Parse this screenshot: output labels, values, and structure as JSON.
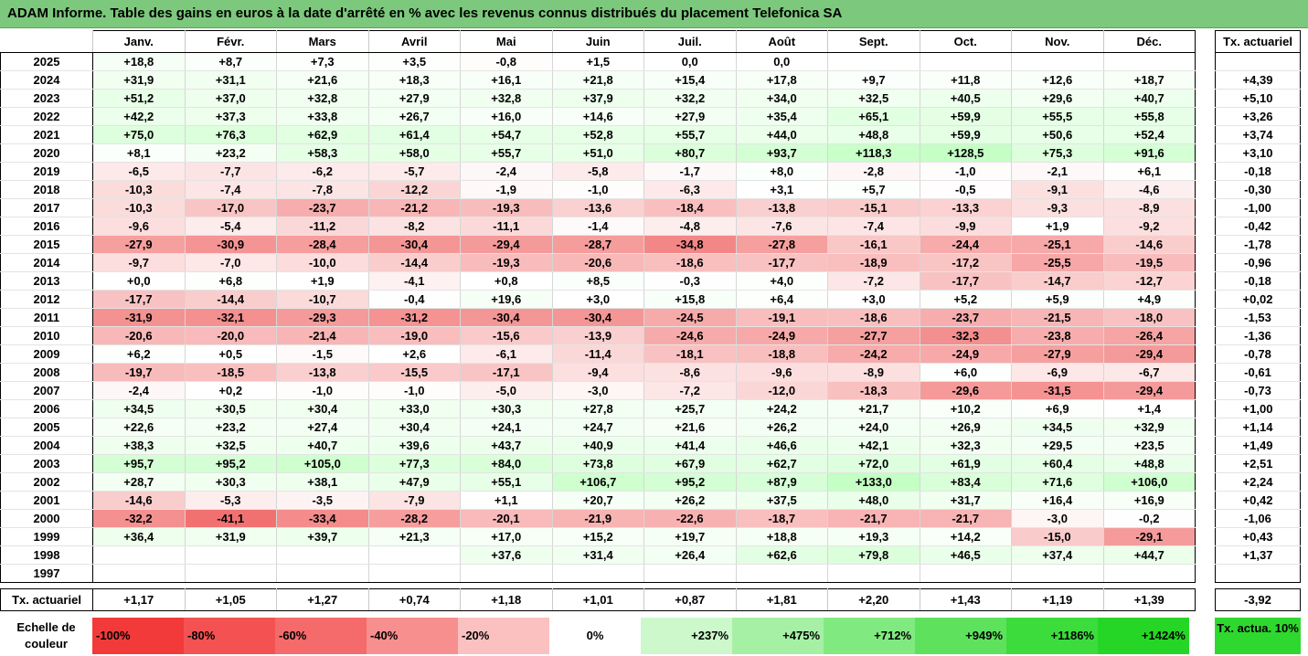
{
  "title": "ADAM Informe. Table des gains en euros à la date d'arrêté en % avec les revenus connus distribués du placement Telefonica SA",
  "months": [
    "Janv.",
    "Févr.",
    "Mars",
    "Avril",
    "Mai",
    "Juin",
    "Juil.",
    "Août",
    "Sept.",
    "Oct.",
    "Nov.",
    "Déc."
  ],
  "side_header": "Tx. actuariel",
  "rows": [
    {
      "year": "2025",
      "values": [
        "+18,8",
        "+8,7",
        "+7,3",
        "+3,5",
        "-0,8",
        "+1,5",
        "0,0",
        "0,0",
        "",
        "",
        "",
        ""
      ],
      "tx": ""
    },
    {
      "year": "2024",
      "values": [
        "+31,9",
        "+31,1",
        "+21,6",
        "+18,3",
        "+16,1",
        "+21,8",
        "+15,4",
        "+17,8",
        "+9,7",
        "+11,8",
        "+12,6",
        "+18,7"
      ],
      "tx": "+4,39"
    },
    {
      "year": "2023",
      "values": [
        "+51,2",
        "+37,0",
        "+32,8",
        "+27,9",
        "+32,8",
        "+37,9",
        "+32,2",
        "+34,0",
        "+32,5",
        "+40,5",
        "+29,6",
        "+40,7"
      ],
      "tx": "+5,10"
    },
    {
      "year": "2022",
      "values": [
        "+42,2",
        "+37,3",
        "+33,8",
        "+26,7",
        "+16,0",
        "+14,6",
        "+27,9",
        "+35,4",
        "+65,1",
        "+59,9",
        "+55,5",
        "+55,8"
      ],
      "tx": "+3,26"
    },
    {
      "year": "2021",
      "values": [
        "+75,0",
        "+76,3",
        "+62,9",
        "+61,4",
        "+54,7",
        "+52,8",
        "+55,7",
        "+44,0",
        "+48,8",
        "+59,9",
        "+50,6",
        "+52,4"
      ],
      "tx": "+3,74"
    },
    {
      "year": "2020",
      "values": [
        "+8,1",
        "+23,2",
        "+58,3",
        "+58,0",
        "+55,7",
        "+51,0",
        "+80,7",
        "+93,7",
        "+118,3",
        "+128,5",
        "+75,3",
        "+91,6"
      ],
      "tx": "+3,10"
    },
    {
      "year": "2019",
      "values": [
        "-6,5",
        "-7,7",
        "-6,2",
        "-5,7",
        "-2,4",
        "-5,8",
        "-1,7",
        "+8,0",
        "-2,8",
        "-1,0",
        "-2,1",
        "+6,1"
      ],
      "tx": "-0,18"
    },
    {
      "year": "2018",
      "values": [
        "-10,3",
        "-7,4",
        "-7,8",
        "-12,2",
        "-1,9",
        "-1,0",
        "-6,3",
        "+3,1",
        "+5,7",
        "-0,5",
        "-9,1",
        "-4,6"
      ],
      "tx": "-0,30"
    },
    {
      "year": "2017",
      "values": [
        "-10,3",
        "-17,0",
        "-23,7",
        "-21,2",
        "-19,3",
        "-13,6",
        "-18,4",
        "-13,8",
        "-15,1",
        "-13,3",
        "-9,3",
        "-8,9"
      ],
      "tx": "-1,00"
    },
    {
      "year": "2016",
      "values": [
        "-9,6",
        "-5,4",
        "-11,2",
        "-8,2",
        "-11,1",
        "-1,4",
        "-4,8",
        "-7,6",
        "-7,4",
        "-9,9",
        "+1,9",
        "-9,2"
      ],
      "tx": "-0,42"
    },
    {
      "year": "2015",
      "values": [
        "-27,9",
        "-30,9",
        "-28,4",
        "-30,4",
        "-29,4",
        "-28,7",
        "-34,8",
        "-27,8",
        "-16,1",
        "-24,4",
        "-25,1",
        "-14,6"
      ],
      "tx": "-1,78"
    },
    {
      "year": "2014",
      "values": [
        "-9,7",
        "-7,0",
        "-10,0",
        "-14,4",
        "-19,3",
        "-20,6",
        "-18,6",
        "-17,7",
        "-18,9",
        "-17,2",
        "-25,5",
        "-19,5"
      ],
      "tx": "-0,96"
    },
    {
      "year": "2013",
      "values": [
        "+0,0",
        "+6,8",
        "+1,9",
        "-4,1",
        "+0,8",
        "+8,5",
        "-0,3",
        "+4,0",
        "-7,2",
        "-17,7",
        "-14,7",
        "-12,7"
      ],
      "tx": "-0,18"
    },
    {
      "year": "2012",
      "values": [
        "-17,7",
        "-14,4",
        "-10,7",
        "-0,4",
        "+19,6",
        "+3,0",
        "+15,8",
        "+6,4",
        "+3,0",
        "+5,2",
        "+5,9",
        "+4,9"
      ],
      "tx": "+0,02"
    },
    {
      "year": "2011",
      "values": [
        "-31,9",
        "-32,1",
        "-29,3",
        "-31,2",
        "-30,4",
        "-30,4",
        "-24,5",
        "-19,1",
        "-18,6",
        "-23,7",
        "-21,5",
        "-18,0"
      ],
      "tx": "-1,53"
    },
    {
      "year": "2010",
      "values": [
        "-20,6",
        "-20,0",
        "-21,4",
        "-19,0",
        "-15,6",
        "-13,9",
        "-24,6",
        "-24,9",
        "-27,7",
        "-32,3",
        "-23,8",
        "-26,4"
      ],
      "tx": "-1,36"
    },
    {
      "year": "2009",
      "values": [
        "+6,2",
        "+0,5",
        "-1,5",
        "+2,6",
        "-6,1",
        "-11,4",
        "-18,1",
        "-18,8",
        "-24,2",
        "-24,9",
        "-27,9",
        "-29,4"
      ],
      "tx": "-0,78"
    },
    {
      "year": "2008",
      "values": [
        "-19,7",
        "-18,5",
        "-13,8",
        "-15,5",
        "-17,1",
        "-9,4",
        "-8,6",
        "-9,6",
        "-8,9",
        "+6,0",
        "-6,9",
        "-6,7"
      ],
      "tx": "-0,61"
    },
    {
      "year": "2007",
      "values": [
        "-2,4",
        "+0,2",
        "-1,0",
        "-1,0",
        "-5,0",
        "-3,0",
        "-7,2",
        "-12,0",
        "-18,3",
        "-29,6",
        "-31,5",
        "-29,4"
      ],
      "tx": "-0,73"
    },
    {
      "year": "2006",
      "values": [
        "+34,5",
        "+30,5",
        "+30,4",
        "+33,0",
        "+30,3",
        "+27,8",
        "+25,7",
        "+24,2",
        "+21,7",
        "+10,2",
        "+6,9",
        "+1,4"
      ],
      "tx": "+1,00"
    },
    {
      "year": "2005",
      "values": [
        "+22,6",
        "+23,2",
        "+27,4",
        "+30,4",
        "+24,1",
        "+24,7",
        "+21,6",
        "+26,2",
        "+24,0",
        "+26,9",
        "+34,5",
        "+32,9"
      ],
      "tx": "+1,14"
    },
    {
      "year": "2004",
      "values": [
        "+38,3",
        "+32,5",
        "+40,7",
        "+39,6",
        "+43,7",
        "+40,9",
        "+41,4",
        "+46,6",
        "+42,1",
        "+32,3",
        "+29,5",
        "+23,5"
      ],
      "tx": "+1,49"
    },
    {
      "year": "2003",
      "values": [
        "+95,7",
        "+95,2",
        "+105,0",
        "+77,3",
        "+84,0",
        "+73,8",
        "+67,9",
        "+62,7",
        "+72,0",
        "+61,9",
        "+60,4",
        "+48,8"
      ],
      "tx": "+2,51"
    },
    {
      "year": "2002",
      "values": [
        "+28,7",
        "+30,3",
        "+38,1",
        "+47,9",
        "+55,1",
        "+106,7",
        "+95,2",
        "+87,9",
        "+133,0",
        "+83,4",
        "+71,6",
        "+106,0"
      ],
      "tx": "+2,24"
    },
    {
      "year": "2001",
      "values": [
        "-14,6",
        "-5,3",
        "-3,5",
        "-7,9",
        "+1,1",
        "+20,7",
        "+26,2",
        "+37,5",
        "+48,0",
        "+31,7",
        "+16,4",
        "+16,9"
      ],
      "tx": "+0,42"
    },
    {
      "year": "2000",
      "values": [
        "-32,2",
        "-41,1",
        "-33,4",
        "-28,2",
        "-20,1",
        "-21,9",
        "-22,6",
        "-18,7",
        "-21,7",
        "-21,7",
        "-3,0",
        "-0,2"
      ],
      "tx": "-1,06"
    },
    {
      "year": "1999",
      "values": [
        "+36,4",
        "+31,9",
        "+39,7",
        "+21,3",
        "+17,0",
        "+15,2",
        "+19,7",
        "+18,8",
        "+19,3",
        "+14,2",
        "-15,0",
        "-29,1"
      ],
      "tx": "+0,43"
    },
    {
      "year": "1998",
      "values": [
        "",
        "",
        "",
        "",
        "+37,6",
        "+31,4",
        "+26,4",
        "+62,6",
        "+79,8",
        "+46,5",
        "+37,4",
        "+44,7"
      ],
      "tx": "+1,37"
    },
    {
      "year": "1997",
      "values": [
        "",
        "",
        "",
        "",
        "",
        "",
        "",
        "",
        "",
        "",
        "",
        ""
      ],
      "tx": ""
    }
  ],
  "actuarial_row": {
    "label": "Tx. actuariel",
    "values": [
      "+1,17",
      "+1,05",
      "+1,27",
      "+0,74",
      "+1,18",
      "+1,01",
      "+0,87",
      "+1,81",
      "+2,20",
      "+1,43",
      "+1,19",
      "+1,39"
    ],
    "tx": "-3,92"
  },
  "legend": {
    "label": "Echelle de couleur",
    "cells": [
      {
        "text": "-100%",
        "color": "#f23a3a",
        "kind": "neg"
      },
      {
        "text": "-80%",
        "color": "#f45252",
        "kind": "neg"
      },
      {
        "text": "-60%",
        "color": "#f56a6a",
        "kind": "neg"
      },
      {
        "text": "-40%",
        "color": "#f88f8f",
        "kind": "neg"
      },
      {
        "text": "-20%",
        "color": "#fbc0c0",
        "kind": "neg"
      },
      {
        "text": "0%",
        "color": "#ffffff",
        "kind": "zero"
      },
      {
        "text": "+237%",
        "color": "#ccf8cc",
        "kind": "pos"
      },
      {
        "text": "+475%",
        "color": "#a6f0a6",
        "kind": "pos"
      },
      {
        "text": "+712%",
        "color": "#80ea80",
        "kind": "pos"
      },
      {
        "text": "+949%",
        "color": "#5ee25e",
        "kind": "pos"
      },
      {
        "text": "+1186%",
        "color": "#3cdc3c",
        "kind": "pos"
      },
      {
        "text": "+1424%",
        "color": "#26d626",
        "kind": "pos"
      }
    ],
    "side_text": "Tx. actua. 10%",
    "side_color": "#2fd82f"
  }
}
